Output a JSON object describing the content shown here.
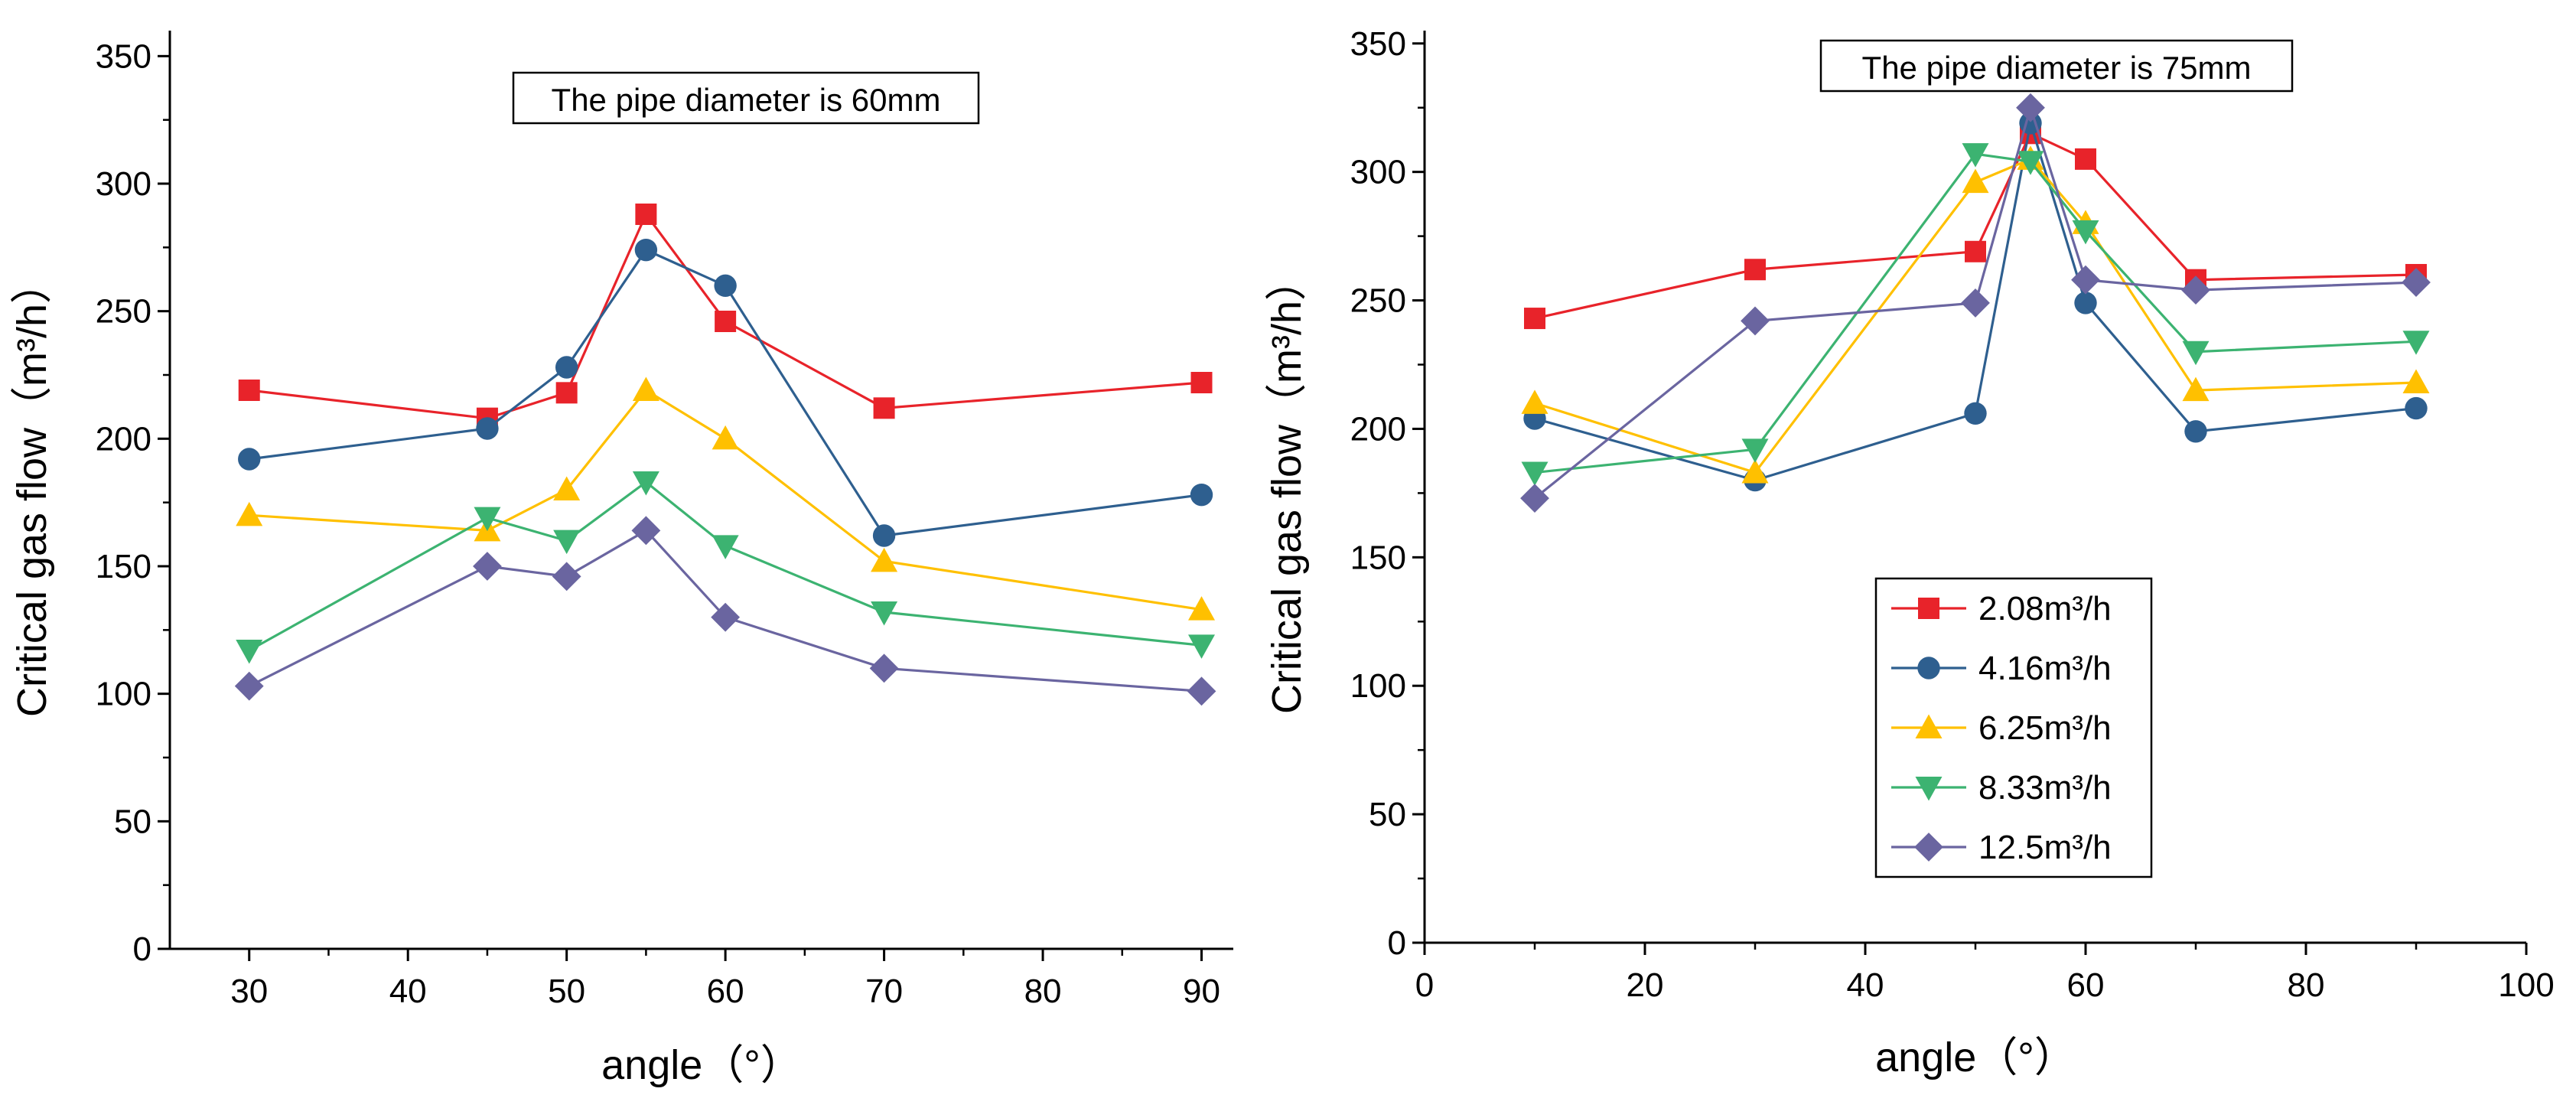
{
  "chart_data": [
    {
      "type": "line",
      "annotation": "The pipe diameter is 60mm",
      "xlabel": "angle（°）",
      "ylabel": "Critical gas flow（m³/h）",
      "xlim": [
        25,
        92
      ],
      "ylim": [
        0,
        360
      ],
      "xticks": [
        30,
        40,
        50,
        60,
        70,
        80,
        90
      ],
      "yticks": [
        0,
        50,
        100,
        150,
        200,
        250,
        300,
        350
      ],
      "grid": false,
      "x": [
        30,
        45,
        50,
        55,
        60,
        70,
        90
      ],
      "series": [
        {
          "name": "2.08m³/h",
          "color": "#e8232a",
          "marker": "square",
          "values": [
            219,
            208,
            218,
            288,
            246,
            212,
            222
          ]
        },
        {
          "name": "4.16m³/h",
          "color": "#2e5f8f",
          "marker": "circle",
          "values": [
            192,
            204,
            228,
            274,
            260,
            162,
            178
          ]
        },
        {
          "name": "6.25m³/h",
          "color": "#ffc000",
          "marker": "triangle-up",
          "values": [
            170,
            164,
            180,
            219,
            200,
            152,
            133
          ]
        },
        {
          "name": "8.33m³/h",
          "color": "#3cb371",
          "marker": "triangle-down",
          "values": [
            117,
            169,
            160,
            183,
            158,
            132,
            119
          ]
        },
        {
          "name": "12.5m³/h",
          "color": "#6a65a0",
          "marker": "diamond",
          "values": [
            103,
            150,
            146,
            164,
            130,
            110,
            101
          ]
        }
      ]
    },
    {
      "type": "line",
      "annotation": "The pipe diameter is 75mm",
      "xlabel": "angle（°）",
      "ylabel": "Critical gas flow（m³/h）",
      "xlim": [
        0,
        100
      ],
      "ylim": [
        0,
        355
      ],
      "xticks": [
        0,
        20,
        40,
        60,
        80,
        100
      ],
      "yticks": [
        0,
        50,
        100,
        150,
        200,
        250,
        300,
        350
      ],
      "grid": false,
      "legend": "lower-center",
      "x": [
        10,
        30,
        50,
        55,
        60,
        70,
        90
      ],
      "series": [
        {
          "name": "2.08m³/h",
          "color": "#e8232a",
          "marker": "square",
          "values": [
            243,
            262,
            269,
            315,
            305,
            258,
            260
          ]
        },
        {
          "name": "4.16m³/h",
          "color": "#2e5f8f",
          "marker": "circle",
          "values": [
            204,
            180,
            206,
            319,
            249,
            199,
            208
          ]
        },
        {
          "name": "6.25m³/h",
          "color": "#ffc000",
          "marker": "triangle-up",
          "values": [
            210,
            183,
            296,
            305,
            280,
            215,
            218
          ]
        },
        {
          "name": "8.33m³/h",
          "color": "#3cb371",
          "marker": "triangle-down",
          "values": [
            183,
            192,
            307,
            304,
            277,
            230,
            234
          ]
        },
        {
          "name": "12.5m³/h",
          "color": "#6a65a0",
          "marker": "diamond",
          "values": [
            173,
            242,
            249,
            325,
            258,
            254,
            257
          ]
        }
      ]
    }
  ]
}
